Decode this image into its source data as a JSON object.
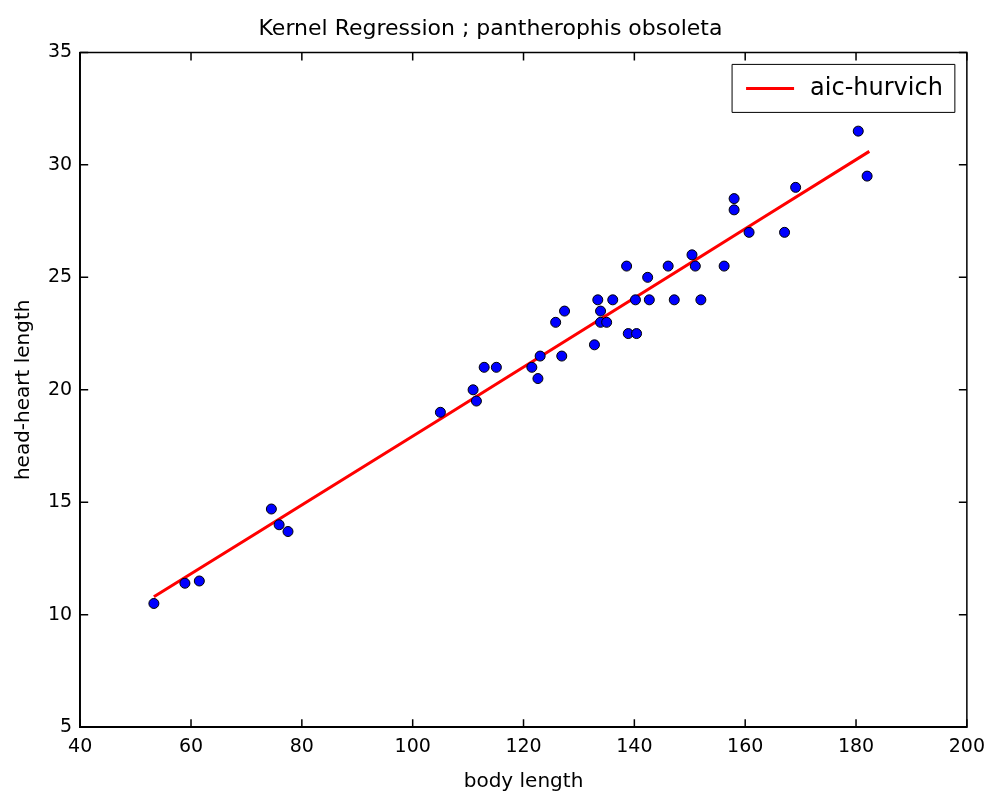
{
  "chart_data": {
    "type": "scatter",
    "title": "Kernel Regression ; pantherophis obsoleta",
    "xlabel": "body length",
    "ylabel": "head-heart length",
    "xlim": [
      40,
      200
    ],
    "xticks": [
      40,
      60,
      80,
      100,
      120,
      140,
      160,
      180,
      200
    ],
    "ylim": [
      5,
      35
    ],
    "yticks": [
      5,
      10,
      15,
      20,
      25,
      30,
      35
    ],
    "grid": false,
    "legend": "top right",
    "marker": "circle",
    "series": [
      {
        "type": "scatter",
        "color": "#0000ff",
        "x": [
          53.3,
          58.9,
          61.5,
          74.5,
          75.9,
          77.5,
          105.0,
          110.9,
          111.5,
          112.9,
          115.1,
          121.5,
          122.6,
          123.0,
          125.8,
          126.9,
          127.4,
          132.8,
          133.4,
          133.9,
          133.9,
          135.0,
          136.1,
          138.6,
          138.9,
          140.4,
          140.2,
          142.4,
          142.7,
          146.1,
          147.2,
          150.4,
          151.0,
          152.0,
          156.2,
          158.0,
          158.0,
          160.7,
          167.1,
          169.1,
          180.4,
          182.0
        ],
        "values": [
          10.5,
          11.4,
          11.5,
          14.7,
          14.0,
          13.7,
          19.0,
          20.0,
          19.5,
          21.0,
          21.0,
          21.0,
          20.5,
          21.5,
          23.0,
          21.5,
          23.5,
          22.0,
          24.0,
          23.5,
          23.0,
          23.0,
          24.0,
          25.5,
          22.5,
          22.5,
          24.0,
          25.0,
          24.0,
          25.5,
          24.0,
          26.0,
          25.5,
          24.0,
          25.5,
          28.5,
          28.0,
          27.0,
          27.0,
          29.0,
          31.5,
          29.5
        ]
      },
      {
        "type": "line",
        "name": "aic-hurvich",
        "color": "#ff0000",
        "marker": "none",
        "line_style": "solid",
        "x": [
          53.3,
          105.0,
          182.4
        ],
        "values": [
          10.8,
          18.7,
          30.6
        ]
      }
    ]
  }
}
